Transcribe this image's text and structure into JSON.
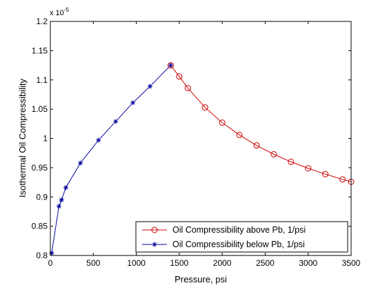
{
  "chart_data": {
    "type": "line",
    "title": "",
    "xlabel": "Pressure, psi",
    "ylabel": "Isothermal Oil Compressibility",
    "xlim": [
      0,
      3500
    ],
    "ylim": [
      0.8,
      1.2
    ],
    "y_multiplier": "x 10",
    "y_multiplier_exponent": "-5",
    "x_ticks": [
      "0",
      "500",
      "1000",
      "1500",
      "2000",
      "2500",
      "3000",
      "3500"
    ],
    "y_ticks": [
      "0.8",
      "0.85",
      "0.9",
      "0.95",
      "1",
      "1.05",
      "1.1",
      "1.15",
      "1.2"
    ],
    "grid": false,
    "legend_position": "bottom-right",
    "series": [
      {
        "name": "Oil Compressibility above Pb, 1/psi",
        "color": "#cc0000",
        "marker": "circle",
        "x": [
          1400,
          1500,
          1600,
          1800,
          2000,
          2200,
          2400,
          2600,
          2800,
          3000,
          3200,
          3400,
          3500
        ],
        "y": [
          1.125,
          1.106,
          1.086,
          1.053,
          1.027,
          1.006,
          0.988,
          0.973,
          0.96,
          0.949,
          0.939,
          0.93,
          0.926
        ]
      },
      {
        "name": "Oil Compressibility below Pb, 1/psi",
        "color": "#000099",
        "marker": "asterisk",
        "x": [
          14.7,
          100,
          130,
          180,
          350,
          560,
          760,
          960,
          1160,
          1400
        ],
        "y": [
          0.804,
          0.884,
          0.895,
          0.916,
          0.958,
          0.997,
          1.029,
          1.061,
          1.089,
          1.125
        ]
      }
    ]
  }
}
